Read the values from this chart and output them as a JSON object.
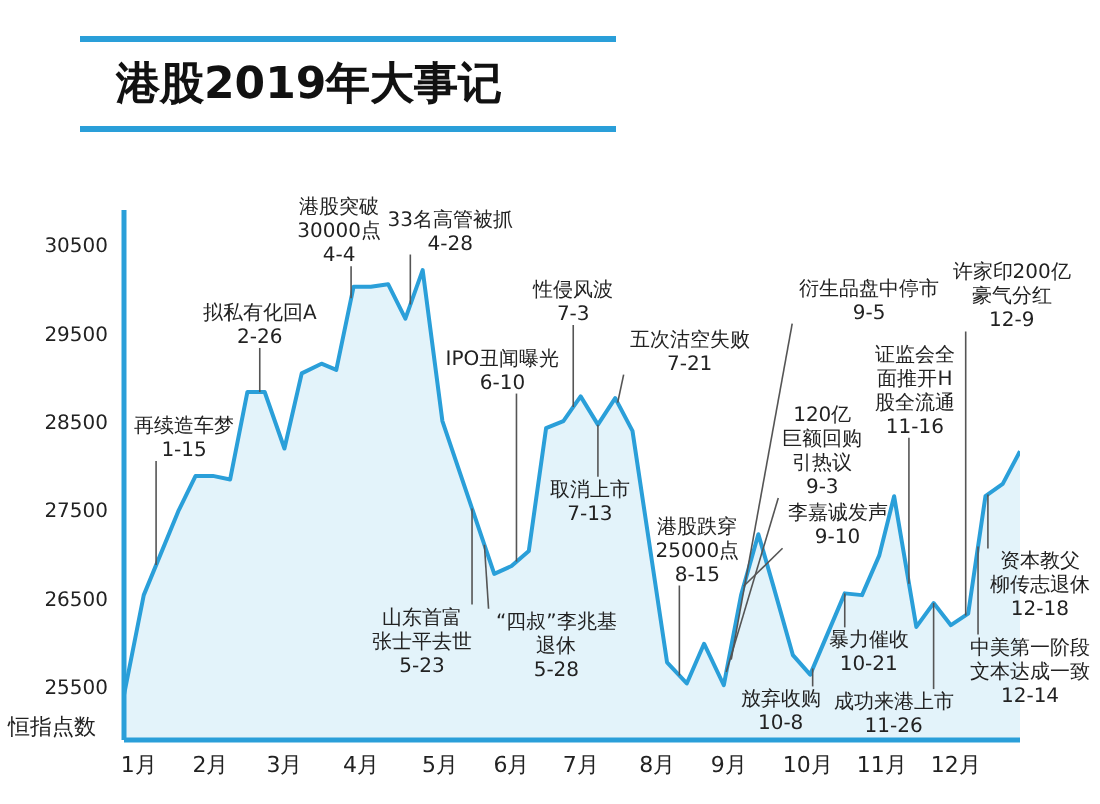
{
  "chart_data": {
    "type": "area",
    "title": "港股2019年大事记",
    "ylabel": "恒指点数",
    "color": "#2a9fd9",
    "x": [
      "2019-01-02",
      "2019-01-10",
      "2019-01-24",
      "2019-01-31",
      "2019-02-07",
      "2019-02-14",
      "2019-02-21",
      "2019-02-28",
      "2019-03-08",
      "2019-03-15",
      "2019-03-23",
      "2019-03-29",
      "2019-04-05",
      "2019-04-12",
      "2019-04-19",
      "2019-04-26",
      "2019-05-03",
      "2019-05-11",
      "2019-06-01",
      "2019-06-08",
      "2019-06-15",
      "2019-06-22",
      "2019-06-29",
      "2019-07-06",
      "2019-07-13",
      "2019-07-20",
      "2019-07-27",
      "2019-08-10",
      "2019-08-18",
      "2019-08-25",
      "2019-09-02",
      "2019-09-09",
      "2019-09-16",
      "2019-09-22",
      "2019-09-30",
      "2019-10-07",
      "2019-10-21",
      "2019-10-28",
      "2019-11-04",
      "2019-11-10",
      "2019-11-19",
      "2019-11-26",
      "2019-12-03",
      "2019-12-10",
      "2019-12-17",
      "2019-12-24",
      "2019-12-31"
    ],
    "values": [
      25410,
      26540,
      27490,
      27890,
      27890,
      27850,
      28840,
      28840,
      28200,
      29050,
      29160,
      29090,
      30030,
      30030,
      30060,
      29670,
      30220,
      28510,
      26780,
      26870,
      27040,
      28430,
      28510,
      28790,
      28470,
      28770,
      28400,
      25780,
      25540,
      25990,
      25520,
      26540,
      27230,
      26650,
      25860,
      25640,
      26560,
      26540,
      26990,
      27660,
      26180,
      26450,
      26200,
      26330,
      27660,
      27800,
      28170
    ],
    "xlim": [
      "2019-01-02",
      "2019-12-31"
    ],
    "xticks": [
      {
        "value": "2019-01-08",
        "label": "1月"
      },
      {
        "value": "2019-02-06",
        "label": "2月"
      },
      {
        "value": "2019-03-08",
        "label": "3月"
      },
      {
        "value": "2019-04-08",
        "label": "4月"
      },
      {
        "value": "2019-05-10",
        "label": "5月"
      },
      {
        "value": "2019-06-08",
        "label": "6月"
      },
      {
        "value": "2019-07-06",
        "label": "7月"
      },
      {
        "value": "2019-08-06",
        "label": "8月"
      },
      {
        "value": "2019-09-04",
        "label": "9月"
      },
      {
        "value": "2019-10-06",
        "label": "10月"
      },
      {
        "value": "2019-11-05",
        "label": "11月"
      },
      {
        "value": "2019-12-05",
        "label": "12月"
      }
    ],
    "ylim": [
      24900,
      30900
    ],
    "yticks": [
      25500,
      26500,
      27500,
      28500,
      29500,
      30500
    ],
    "annotations": [
      {
        "text": "再续造车梦\n1-15",
        "x": "2019-01-15",
        "y": 26880
      },
      {
        "text": "拟私有化回A\n2-26",
        "x": "2019-02-26",
        "y": 28840
      },
      {
        "text": "港股突破\n30000点\n4-4",
        "x": "2019-04-04",
        "y": 29900
      },
      {
        "text": "33名高管被抓\n4-28",
        "x": "2019-04-28",
        "y": 29830
      },
      {
        "text": "山东首富张士平去世\n5-23",
        "x": "2019-05-23",
        "y": 27520
      },
      {
        "text": "“四叔”李兆基退休\n5-28",
        "x": "2019-05-28",
        "y": 27110
      },
      {
        "text": "IPO丑闻曝光\n6-10",
        "x": "2019-06-10",
        "y": 26920
      },
      {
        "text": "性侵风波\n7-3",
        "x": "2019-07-03",
        "y": 28670
      },
      {
        "text": "取消上市\n7-13",
        "x": "2019-07-13",
        "y": 28470
      },
      {
        "text": "五次沽空失败\n7-21",
        "x": "2019-07-21",
        "y": 28720
      },
      {
        "text": "港股跌穿\n25000点\n8-15",
        "x": "2019-08-15",
        "y": 25630
      },
      {
        "text": "120亿巨额回购引热议\n9-3",
        "x": "2019-09-03",
        "y": 25670
      },
      {
        "text": "衍生品盘中停市\n9-5",
        "x": "2019-09-05",
        "y": 25810
      },
      {
        "text": "李嘉诚发声\n9-10",
        "x": "2019-09-10",
        "y": 26640
      },
      {
        "text": "放弃收购\n10-8",
        "x": "2019-10-08",
        "y": 25710
      },
      {
        "text": "暴力催收\n10-21",
        "x": "2019-10-21",
        "y": 26560
      },
      {
        "text": "证监会全面推开H股全流通\n11-16",
        "x": "2019-11-16",
        "y": 26670
      },
      {
        "text": "成功来港上市\n11-26",
        "x": "2019-11-26",
        "y": 26450
      },
      {
        "text": "许家印200亿豪气分红\n12-9",
        "x": "2019-12-09",
        "y": 26310
      },
      {
        "text": "中美第一阶段文本达成一致\n12-14",
        "x": "2019-12-14",
        "y": 27090
      },
      {
        "text": "资本教父柳传志退休\n12-18",
        "x": "2019-12-18",
        "y": 27680
      }
    ]
  }
}
